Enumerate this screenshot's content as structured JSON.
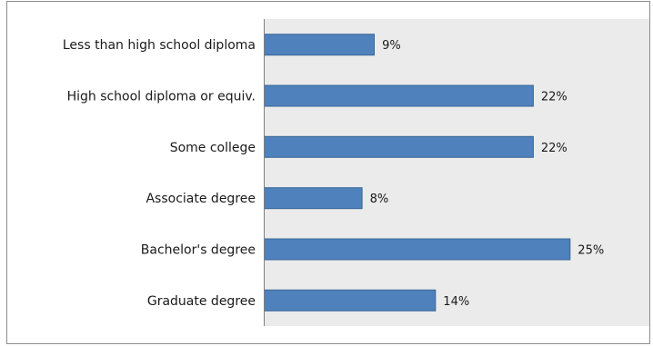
{
  "chart_data": {
    "type": "bar",
    "orientation": "horizontal",
    "categories": [
      "Less than high school diploma",
      "High school diploma or equiv.",
      "Some college",
      "Associate degree",
      "Bachelor's degree",
      "Graduate degree"
    ],
    "values": [
      9,
      22,
      22,
      8,
      25,
      14
    ],
    "value_labels": [
      "9%",
      "22%",
      "22%",
      "8%",
      "25%",
      "14%"
    ],
    "title": "",
    "xlabel": "",
    "ylabel": "",
    "grid": false,
    "legend": "none",
    "colors": {
      "bar": "#4f81bd",
      "bar_border": "#3a6797",
      "plot_background": "#ebebeb",
      "axis": "#7f7f7f"
    }
  }
}
